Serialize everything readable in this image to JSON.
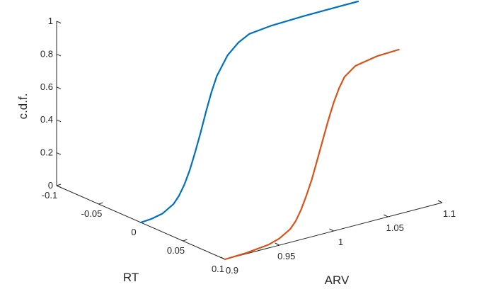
{
  "chart_data": {
    "type": "line",
    "projection": "3d",
    "grid": false,
    "zlabel": "c.d.f.",
    "xlabel": "RT",
    "ylabel": "ARV",
    "xlim": [
      -0.1,
      0.1
    ],
    "ylim": [
      0.9,
      1.1
    ],
    "zlim": [
      0,
      1
    ],
    "x_ticks": [
      "-0.1",
      "-0.05",
      "0",
      "0.05",
      "0.1"
    ],
    "y_ticks": [
      "0.9",
      "0.95",
      "1",
      "1.05",
      "1.1"
    ],
    "z_ticks": [
      "0",
      "0.2",
      "0.4",
      "0.6",
      "0.8",
      "1"
    ],
    "series": [
      {
        "color": "#0072BD",
        "x_const": 0.0,
        "y": [
          0.9,
          0.91,
          0.92,
          0.93,
          0.935,
          0.94,
          0.945,
          0.95,
          0.955,
          0.96,
          0.965,
          0.97,
          0.98,
          0.99,
          1.0,
          1.02,
          1.05,
          1.08,
          1.1
        ],
        "cdf": [
          0.0,
          0.005,
          0.02,
          0.06,
          0.1,
          0.16,
          0.24,
          0.34,
          0.45,
          0.57,
          0.68,
          0.77,
          0.88,
          0.94,
          0.975,
          0.99,
          0.997,
          0.999,
          1.0
        ]
      },
      {
        "color": "#D95319",
        "x_const": 0.1,
        "y": [
          0.9,
          0.92,
          0.94,
          0.95,
          0.96,
          0.965,
          0.97,
          0.975,
          0.98,
          0.985,
          0.99,
          0.995,
          1.0,
          1.005,
          1.01,
          1.02,
          1.04,
          1.06
        ],
        "cdf": [
          0.0,
          0.005,
          0.02,
          0.04,
          0.08,
          0.12,
          0.18,
          0.26,
          0.35,
          0.46,
          0.57,
          0.68,
          0.78,
          0.86,
          0.92,
          0.97,
          0.995,
          1.0
        ]
      }
    ]
  }
}
